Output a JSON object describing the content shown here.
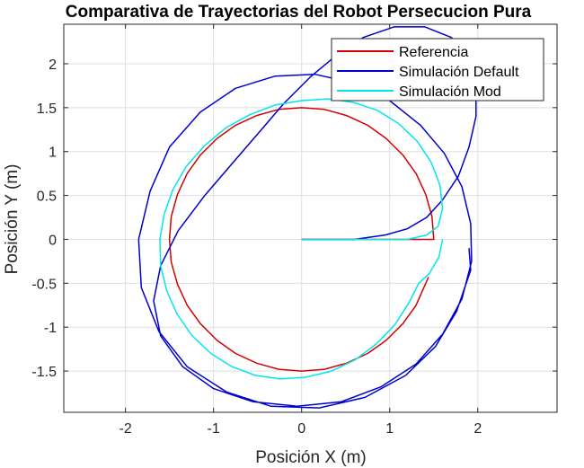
{
  "chart_data": {
    "type": "line",
    "title": "Comparativa de Trayectorias del Robot Persecucion Pura",
    "xlabel": "Posición X (m)",
    "ylabel": "Posición Y (m)",
    "xlim": [
      -2.7,
      2.9
    ],
    "ylim": [
      -1.97,
      2.45
    ],
    "xticks": [
      -2,
      -1,
      0,
      1,
      2
    ],
    "xtick_labels": [
      "-2",
      "-1",
      "0",
      "1",
      "2"
    ],
    "yticks": [
      -1.5,
      -1,
      -0.5,
      0,
      0.5,
      1,
      1.5,
      2
    ],
    "ytick_labels": [
      "-1.5",
      "-1",
      "-0.5",
      "0",
      "0.5",
      "1",
      "1.5",
      "2"
    ],
    "grid": true,
    "legend_position": "top-right",
    "series": [
      {
        "name": "Referencia",
        "color": "#d40000",
        "points": [
          [
            0,
            0
          ],
          [
            1.5,
            0
          ],
          [
            1.48,
            0.26
          ],
          [
            1.41,
            0.51
          ],
          [
            1.3,
            0.75
          ],
          [
            1.15,
            0.96
          ],
          [
            0.96,
            1.15
          ],
          [
            0.75,
            1.3
          ],
          [
            0.51,
            1.41
          ],
          [
            0.26,
            1.48
          ],
          [
            0,
            1.5
          ],
          [
            -0.26,
            1.48
          ],
          [
            -0.51,
            1.41
          ],
          [
            -0.75,
            1.3
          ],
          [
            -0.96,
            1.15
          ],
          [
            -1.15,
            0.96
          ],
          [
            -1.3,
            0.75
          ],
          [
            -1.41,
            0.51
          ],
          [
            -1.48,
            0.26
          ],
          [
            -1.5,
            0
          ],
          [
            -1.48,
            -0.26
          ],
          [
            -1.41,
            -0.51
          ],
          [
            -1.3,
            -0.75
          ],
          [
            -1.15,
            -0.96
          ],
          [
            -0.96,
            -1.15
          ],
          [
            -0.75,
            -1.3
          ],
          [
            -0.51,
            -1.41
          ],
          [
            -0.26,
            -1.48
          ],
          [
            0,
            -1.5
          ],
          [
            0.26,
            -1.48
          ],
          [
            0.51,
            -1.41
          ],
          [
            0.75,
            -1.3
          ],
          [
            0.96,
            -1.15
          ],
          [
            1.15,
            -0.96
          ],
          [
            1.3,
            -0.75
          ],
          [
            1.44,
            -0.43
          ]
        ]
      },
      {
        "name": "Simulación Default",
        "color": "#0000cc",
        "points": [
          [
            0,
            0
          ],
          [
            0.6,
            0
          ],
          [
            0.95,
            0.05
          ],
          [
            1.2,
            0.12
          ],
          [
            1.42,
            0.25
          ],
          [
            1.6,
            0.45
          ],
          [
            1.78,
            0.72
          ],
          [
            1.9,
            1.05
          ],
          [
            1.98,
            1.4
          ],
          [
            1.98,
            1.75
          ],
          [
            1.9,
            2.05
          ],
          [
            1.7,
            2.3
          ],
          [
            1.4,
            2.42
          ],
          [
            1.05,
            2.42
          ],
          [
            0.7,
            2.3
          ],
          [
            0.4,
            2.1
          ],
          [
            0.1,
            1.85
          ],
          [
            -0.2,
            1.55
          ],
          [
            -0.5,
            1.2
          ],
          [
            -0.8,
            0.85
          ],
          [
            -1.1,
            0.5
          ],
          [
            -1.4,
            0.1
          ],
          [
            -1.6,
            -0.3
          ],
          [
            -1.68,
            -0.7
          ],
          [
            -1.6,
            -1.1
          ],
          [
            -1.35,
            -1.45
          ],
          [
            -1.0,
            -1.7
          ],
          [
            -0.55,
            -1.85
          ],
          [
            -0.05,
            -1.9
          ],
          [
            0.45,
            -1.85
          ],
          [
            0.9,
            -1.68
          ],
          [
            1.3,
            -1.42
          ],
          [
            1.6,
            -1.08
          ],
          [
            1.82,
            -0.68
          ],
          [
            1.93,
            -0.25
          ],
          [
            1.92,
            0.18
          ],
          [
            1.82,
            0.6
          ],
          [
            1.62,
            0.98
          ],
          [
            1.35,
            1.3
          ],
          [
            1.0,
            1.58
          ],
          [
            0.6,
            1.78
          ],
          [
            0.15,
            1.88
          ],
          [
            -0.3,
            1.86
          ],
          [
            -0.75,
            1.72
          ],
          [
            -1.15,
            1.45
          ],
          [
            -1.5,
            1.05
          ],
          [
            -1.72,
            0.55
          ],
          [
            -1.85,
            0.0
          ],
          [
            -1.82,
            -0.55
          ],
          [
            -1.62,
            -1.05
          ],
          [
            -1.3,
            -1.45
          ],
          [
            -0.85,
            -1.74
          ],
          [
            -0.35,
            -1.9
          ],
          [
            0.2,
            -1.92
          ],
          [
            0.72,
            -1.8
          ],
          [
            1.18,
            -1.55
          ],
          [
            1.52,
            -1.22
          ],
          [
            1.76,
            -0.82
          ],
          [
            1.92,
            -0.35
          ],
          [
            1.9,
            -0.1
          ]
        ]
      },
      {
        "name": "Simulación Mod",
        "color": "#00e5ee",
        "points": [
          [
            0,
            0
          ],
          [
            1.2,
            0
          ],
          [
            1.42,
            0.05
          ],
          [
            1.55,
            0.15
          ],
          [
            1.6,
            0.35
          ],
          [
            1.57,
            0.62
          ],
          [
            1.47,
            0.88
          ],
          [
            1.31,
            1.12
          ],
          [
            1.1,
            1.32
          ],
          [
            0.86,
            1.47
          ],
          [
            0.59,
            1.56
          ],
          [
            0.3,
            1.6
          ],
          [
            0,
            1.58
          ],
          [
            -0.3,
            1.53
          ],
          [
            -0.59,
            1.42
          ],
          [
            -0.86,
            1.27
          ],
          [
            -1.1,
            1.07
          ],
          [
            -1.31,
            0.83
          ],
          [
            -1.46,
            0.57
          ],
          [
            -1.56,
            0.29
          ],
          [
            -1.61,
            0.0
          ],
          [
            -1.6,
            -0.3
          ],
          [
            -1.53,
            -0.59
          ],
          [
            -1.41,
            -0.86
          ],
          [
            -1.24,
            -1.1
          ],
          [
            -1.03,
            -1.3
          ],
          [
            -0.79,
            -1.45
          ],
          [
            -0.52,
            -1.55
          ],
          [
            -0.24,
            -1.59
          ],
          [
            0.05,
            -1.57
          ],
          [
            0.34,
            -1.5
          ],
          [
            0.61,
            -1.37
          ],
          [
            0.85,
            -1.19
          ],
          [
            1.06,
            -0.97
          ],
          [
            1.22,
            -0.72
          ],
          [
            1.33,
            -0.5
          ],
          [
            1.45,
            -0.39
          ],
          [
            1.56,
            -0.2
          ],
          [
            1.6,
            0.0
          ]
        ]
      }
    ]
  }
}
